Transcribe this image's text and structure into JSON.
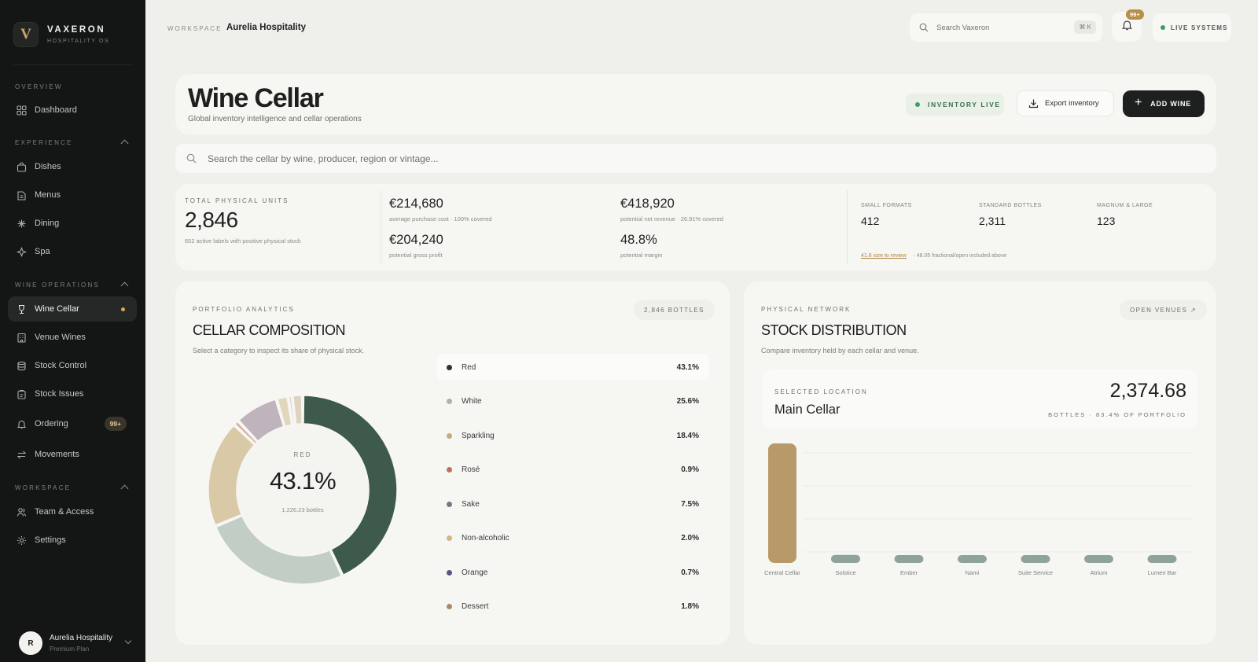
{
  "brand": {
    "logo": "V",
    "name": "VAXERON",
    "sub": "HOSPITALITY OS"
  },
  "nav": {
    "overview_label": "OVERVIEW",
    "dashboard": "Dashboard",
    "experience_label": "EXPERIENCE",
    "experience": [
      "Dishes",
      "Menus",
      "Dining",
      "Spa"
    ],
    "wine_label": "WINE OPERATIONS",
    "wine": [
      "Wine Cellar",
      "Venue Wines",
      "Stock Control",
      "Stock Issues",
      "Ordering",
      "Movements"
    ],
    "ordering_badge": "99+",
    "workspace_label": "WORKSPACE",
    "workspace": [
      "Team & Access",
      "Settings"
    ]
  },
  "user": {
    "initial": "R",
    "name": "Aurelia Hospitality",
    "plan": "Premium Plan"
  },
  "topbar": {
    "workspace_label": "WORKSPACE",
    "workspace_name": "Aurelia Hospitality",
    "search_placeholder": "Search Vaxeron",
    "search_kbd": "⌘ K",
    "notif_badge": "99+",
    "live_systems": "LIVE SYSTEMS"
  },
  "header": {
    "title": "Wine Cellar",
    "subtitle": "Global inventory intelligence and cellar operations",
    "inventory_live": "INVENTORY LIVE",
    "export": "Export inventory",
    "add": "ADD WINE"
  },
  "cellar_search": {
    "placeholder": "Search the cellar by wine, producer, region or vintage..."
  },
  "stats": {
    "total_label": "TOTAL PHYSICAL UNITS",
    "total_value": "2,846",
    "total_note": "652 active labels with positive physical stock",
    "cost_value": "€214,680",
    "cost_note": "average purchase cost · 100% covered",
    "revenue_value": "€418,920",
    "revenue_note": "potential net revenue · 26.91% covered",
    "profit_value": "€204,240",
    "profit_note": "potential gross profit",
    "margin_value": "48.8%",
    "margin_note": "potential margin",
    "small_label": "SMALL FORMATS",
    "small_value": "412",
    "standard_label": "STANDARD BOTTLES",
    "standard_value": "2,311",
    "magnum_label": "MAGNUM & LARGE",
    "magnum_value": "123",
    "review_link": "41.6 size to review",
    "review_note": "· 48.05 fractional/open included above"
  },
  "portfolio": {
    "caps": "PORTFOLIO ANALYTICS",
    "title": "CELLAR COMPOSITION",
    "subtitle": "Select a category to inspect its share of physical stock.",
    "pill": "2,846 BOTTLES",
    "center_label": "RED",
    "center_value": "43.1%",
    "center_note": "1,226.23 bottles",
    "colors": [
      "#3d5a4c",
      "#c2cdc6",
      "#d9c9a6",
      "#d9a593",
      "#bfb3bc",
      "#e2d6bd",
      "#c8c7c0",
      "#ded3bf"
    ]
  },
  "chart_data": [
    {
      "type": "pie",
      "categories": [
        "Red",
        "White",
        "Sparkling",
        "Rosé",
        "Sake",
        "Non-alcoholic",
        "Orange",
        "Dessert"
      ],
      "values": [
        43.1,
        25.6,
        18.4,
        0.9,
        7.5,
        2.0,
        0.7,
        1.8
      ],
      "labels": [
        "43.1%",
        "25.6%",
        "18.4%",
        "0.9%",
        "7.5%",
        "2.0%",
        "0.7%",
        "1.8%"
      ],
      "legend_colors": [
        "#2f3331",
        "#a8b4ad",
        "#c8ab7a",
        "#b9735e",
        "#7e7382",
        "#d3b58a",
        "#55597a",
        "#a78c6a"
      ]
    },
    {
      "type": "bar",
      "categories": [
        "Central Cellar",
        "Solstice",
        "Ember",
        "Nami",
        "Suite Service",
        "Atrium",
        "Lumen Bar"
      ],
      "values": [
        2374.68,
        160,
        95,
        60,
        60,
        60,
        60
      ],
      "colors": [
        "#b89a6a",
        "#8ea39a",
        "#8ea39a",
        "#8ea39a",
        "#8ea39a",
        "#8ea39a",
        "#8ea39a"
      ]
    }
  ],
  "distribution": {
    "caps": "PHYSICAL NETWORK",
    "title": "STOCK DISTRIBUTION",
    "subtitle": "Compare inventory held by each cellar and venue.",
    "pill": "OPEN VENUES ↗",
    "selected_label": "SELECTED LOCATION",
    "selected_name": "Main Cellar",
    "selected_value": "2,374.68",
    "selected_note": "BOTTLES · 83.4% OF PORTFOLIO"
  }
}
